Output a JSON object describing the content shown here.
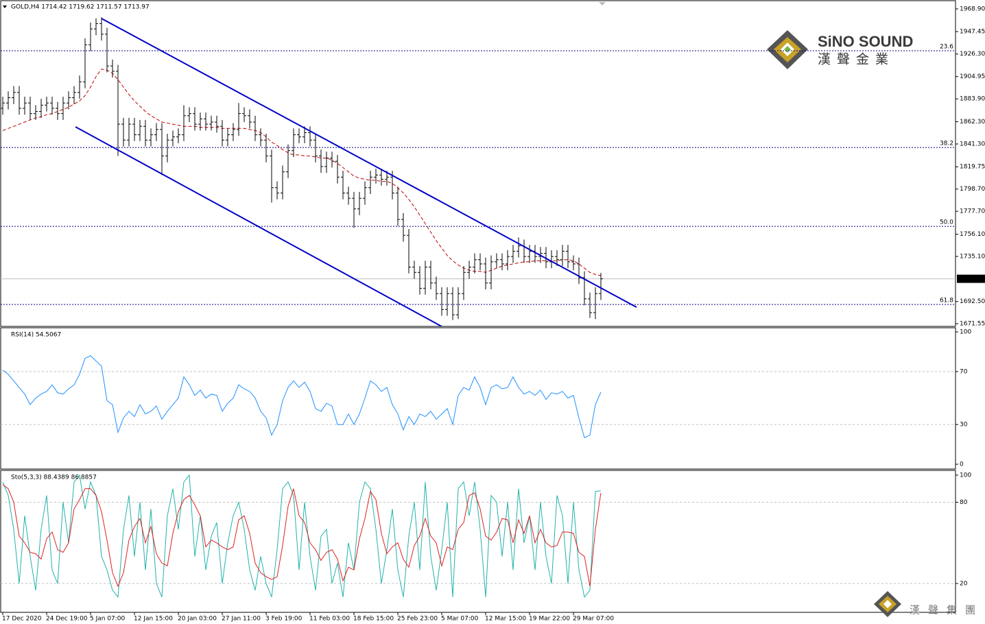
{
  "chart_data": [
    {
      "type": "ohlc",
      "title": "GOLD,H4  1714.42 1719.62 1711.57 1713.97",
      "color": "#000000",
      "categories": [
        "17 Dec 2020",
        null,
        null,
        null,
        null,
        null,
        null,
        null,
        "24 Dec 19:00",
        null,
        null,
        null,
        null,
        null,
        null,
        null,
        "5 Jan 07:00",
        null,
        null,
        null,
        null,
        null,
        null,
        null,
        "12 Jan 15:00",
        null,
        null,
        null,
        null,
        null,
        null,
        null,
        "20 Jan 03:00",
        null,
        null,
        null,
        null,
        null,
        null,
        null,
        "27 Jan 11:00",
        null,
        null,
        null,
        null,
        null,
        null,
        null,
        "3 Feb 19:00",
        null,
        null,
        null,
        null,
        null,
        null,
        null,
        "11 Feb 03:00",
        null,
        null,
        null,
        null,
        null,
        null,
        null,
        "18 Feb 15:00",
        null,
        null,
        null,
        null,
        null,
        null,
        null,
        "25 Feb 23:00",
        null,
        null,
        null,
        null,
        null,
        null,
        null,
        "5 Mar 07:00",
        null,
        null,
        null,
        null,
        null,
        null,
        null,
        "12 Mar 15:00",
        null,
        null,
        null,
        null,
        null,
        null,
        null,
        "19 Mar 22:00",
        null,
        null,
        null,
        null,
        null,
        null,
        null,
        "29 Mar 07:00",
        null,
        null,
        null,
        null,
        null
      ],
      "open": [
        1875,
        1880,
        1885,
        1890,
        1875,
        1880,
        1870,
        1872,
        1878,
        1880,
        1875,
        1870,
        1880,
        1885,
        1890,
        1900,
        1935,
        1950,
        1955,
        1945,
        1915,
        1910,
        1860,
        1845,
        1860,
        1850,
        1858,
        1845,
        1850,
        1855,
        1830,
        1845,
        1848,
        1850,
        1868,
        1870,
        1860,
        1865,
        1860,
        1862,
        1858,
        1845,
        1850,
        1855,
        1870,
        1868,
        1862,
        1850,
        1845,
        1830,
        1800,
        1795,
        1815,
        1835,
        1850,
        1848,
        1852,
        1845,
        1830,
        1820,
        1828,
        1825,
        1810,
        1795,
        1790,
        1780,
        1790,
        1800,
        1810,
        1812,
        1808,
        1810,
        1795,
        1770,
        1755,
        1725,
        1720,
        1705,
        1725,
        1710,
        1700,
        1685,
        1700,
        1680,
        1700,
        1720,
        1725,
        1732,
        1728,
        1710,
        1730,
        1732,
        1728,
        1735,
        1740,
        1745,
        1735,
        1740,
        1735,
        1738,
        1730,
        1735,
        1732,
        1740,
        1730,
        1728,
        1715,
        1695,
        1682,
        1700
      ],
      "high": [
        1886,
        1891,
        1896,
        1896,
        1886,
        1886,
        1878,
        1884,
        1886,
        1886,
        1881,
        1886,
        1891,
        1896,
        1906,
        1941,
        1956,
        1960,
        1961,
        1951,
        1921,
        1916,
        1866,
        1866,
        1866,
        1864,
        1864,
        1856,
        1861,
        1861,
        1851,
        1854,
        1856,
        1878,
        1876,
        1876,
        1871,
        1871,
        1868,
        1868,
        1864,
        1856,
        1861,
        1880,
        1876,
        1874,
        1868,
        1856,
        1851,
        1836,
        1806,
        1821,
        1841,
        1856,
        1856,
        1858,
        1858,
        1851,
        1836,
        1834,
        1834,
        1831,
        1816,
        1801,
        1796,
        1796,
        1806,
        1816,
        1818,
        1818,
        1816,
        1816,
        1801,
        1776,
        1761,
        1731,
        1726,
        1731,
        1731,
        1716,
        1706,
        1706,
        1706,
        1706,
        1726,
        1731,
        1738,
        1738,
        1734,
        1736,
        1738,
        1738,
        1741,
        1746,
        1753,
        1751,
        1746,
        1746,
        1744,
        1744,
        1741,
        1741,
        1746,
        1746,
        1736,
        1734,
        1721,
        1701,
        1706,
        1719.62
      ],
      "low": [
        1869,
        1874,
        1879,
        1869,
        1869,
        1864,
        1864,
        1866,
        1872,
        1869,
        1864,
        1864,
        1874,
        1879,
        1884,
        1894,
        1929,
        1944,
        1939,
        1909,
        1904,
        1830,
        1839,
        1839,
        1844,
        1844,
        1839,
        1839,
        1844,
        1812,
        1824,
        1839,
        1842,
        1844,
        1862,
        1854,
        1854,
        1854,
        1854,
        1852,
        1839,
        1839,
        1844,
        1849,
        1862,
        1856,
        1844,
        1839,
        1824,
        1786,
        1789,
        1789,
        1809,
        1829,
        1842,
        1842,
        1839,
        1824,
        1814,
        1814,
        1819,
        1804,
        1789,
        1784,
        1762,
        1774,
        1784,
        1794,
        1804,
        1802,
        1802,
        1789,
        1764,
        1749,
        1719,
        1714,
        1699,
        1699,
        1704,
        1694,
        1679,
        1679,
        1675,
        1676,
        1694,
        1714,
        1719,
        1722,
        1704,
        1704,
        1724,
        1722,
        1722,
        1729,
        1734,
        1729,
        1729,
        1729,
        1729,
        1724,
        1724,
        1726,
        1726,
        1724,
        1722,
        1709,
        1689,
        1677,
        1676,
        1694
      ],
      "close": [
        1880,
        1885,
        1890,
        1875,
        1880,
        1870,
        1872,
        1878,
        1880,
        1875,
        1870,
        1880,
        1885,
        1890,
        1900,
        1935,
        1950,
        1955,
        1945,
        1915,
        1910,
        1860,
        1845,
        1860,
        1850,
        1858,
        1845,
        1850,
        1855,
        1830,
        1845,
        1848,
        1850,
        1868,
        1870,
        1860,
        1865,
        1860,
        1862,
        1858,
        1845,
        1850,
        1855,
        1870,
        1868,
        1862,
        1850,
        1845,
        1830,
        1800,
        1795,
        1815,
        1835,
        1850,
        1848,
        1852,
        1845,
        1830,
        1820,
        1828,
        1825,
        1810,
        1795,
        1790,
        1780,
        1790,
        1800,
        1810,
        1812,
        1808,
        1810,
        1795,
        1770,
        1755,
        1725,
        1720,
        1705,
        1725,
        1710,
        1700,
        1685,
        1700,
        1680,
        1700,
        1720,
        1725,
        1732,
        1728,
        1710,
        1730,
        1732,
        1728,
        1735,
        1740,
        1745,
        1735,
        1740,
        1735,
        1738,
        1730,
        1735,
        1732,
        1740,
        1730,
        1728,
        1715,
        1695,
        1682,
        1700,
        1713.97
      ],
      "moving_average": {
        "color": "#c00000",
        "values": [
          1854,
          1856,
          1858,
          1860,
          1862,
          1864,
          1866,
          1867,
          1869,
          1870,
          1872,
          1874,
          1876,
          1879,
          1882,
          1887,
          1895,
          1905,
          1912,
          1911,
          1908,
          1902,
          1895,
          1888,
          1882,
          1877,
          1872,
          1868,
          1865,
          1862,
          1861,
          1860,
          1859,
          1858,
          1858,
          1858,
          1857,
          1857,
          1857,
          1857,
          1856,
          1856,
          1856,
          1856,
          1856,
          1855,
          1854,
          1852,
          1848,
          1843,
          1840,
          1836,
          1833,
          1831,
          1831,
          1830,
          1830,
          1829,
          1828,
          1828,
          1826,
          1823,
          1819,
          1815,
          1811,
          1809,
          1808,
          1807,
          1807,
          1806,
          1806,
          1804,
          1800,
          1795,
          1789,
          1782,
          1774,
          1766,
          1758,
          1750,
          1743,
          1736,
          1731,
          1727,
          1724,
          1722,
          1721,
          1721,
          1720,
          1722,
          1724,
          1726,
          1727,
          1728,
          1729,
          1730,
          1730,
          1731,
          1731,
          1731,
          1731,
          1731,
          1732,
          1732,
          1731,
          1728,
          1724,
          1720,
          1718,
          1717
        ]
      },
      "trendlines": [
        {
          "color": "#0000c8",
          "x": [
            18,
            115.5
          ],
          "y": [
            1959.8,
            1687.1
          ]
        },
        {
          "color": "#0000c8",
          "x": [
            13.25,
            80
          ],
          "y": [
            1857.5,
            1668.9
          ]
        }
      ],
      "fib_levels": [
        {
          "value": 1929.4,
          "label": "23.6"
        },
        {
          "value": 1838.0,
          "label": "38.2"
        },
        {
          "value": 1763.5,
          "label": "50.0"
        },
        {
          "value": 1689.7,
          "label": "61.8"
        }
      ],
      "last_price": 1713.97,
      "ylim": [
        1669,
        1977.3
      ],
      "yticks": [
        {
          "value": 1968.9,
          "label": "1968.90"
        },
        {
          "value": 1947.45,
          "label": "1947.45"
        },
        {
          "value": 1926.3,
          "label": "1926.30"
        },
        {
          "value": 1904.95,
          "label": "1904.95"
        },
        {
          "value": 1883.9,
          "label": "1883.90"
        },
        {
          "value": 1862.3,
          "label": "1862.30"
        },
        {
          "value": 1841.3,
          "label": "1841.30"
        },
        {
          "value": 1819.75,
          "label": "1819.75"
        },
        {
          "value": 1798.7,
          "label": "1798.70"
        },
        {
          "value": 1777.7,
          "label": "1777.70"
        },
        {
          "value": 1756.1,
          "label": "1756.10"
        },
        {
          "value": 1735.1,
          "label": "1735.10"
        },
        {
          "value": 1692.5,
          "label": "1692.50"
        },
        {
          "value": 1671.55,
          "label": "1671.55"
        }
      ]
    },
    {
      "type": "line",
      "title": "RSI(14) 54.5067",
      "series": [
        {
          "color": "#1e90ff",
          "values": [
            71,
            68,
            63,
            58,
            53,
            45,
            50,
            53,
            55,
            60,
            54,
            53,
            57,
            60,
            68,
            80,
            82,
            78,
            74,
            48,
            45,
            24,
            35,
            40,
            36,
            45,
            38,
            40,
            44,
            34,
            40,
            45,
            50,
            66,
            60,
            52,
            56,
            50,
            53,
            52,
            40,
            46,
            50,
            60,
            57,
            55,
            50,
            40,
            35,
            22,
            30,
            48,
            58,
            63,
            58,
            62,
            55,
            42,
            40,
            46,
            44,
            30,
            30,
            38,
            30,
            38,
            50,
            63,
            60,
            55,
            58,
            45,
            38,
            26,
            36,
            30,
            38,
            36,
            40,
            34,
            38,
            42,
            30,
            52,
            58,
            56,
            66,
            58,
            45,
            58,
            60,
            57,
            58,
            66,
            58,
            53,
            55,
            52,
            56,
            49,
            54,
            53,
            55,
            50,
            52,
            35,
            20,
            22,
            45,
            54.5067
          ]
        }
      ],
      "levels": [
        30,
        70
      ],
      "ylim": [
        -3.1,
        103.1
      ],
      "yticks": [
        100,
        70,
        30,
        0
      ]
    },
    {
      "type": "line",
      "title": "Sto(5,3,3) 88.4389 86.8857",
      "series": [
        {
          "color": "#20b2aa",
          "values": [
            95,
            85,
            60,
            20,
            70,
            40,
            15,
            60,
            85,
            30,
            20,
            80,
            50,
            95,
            100,
            75,
            95,
            85,
            40,
            30,
            15,
            10,
            60,
            85,
            40,
            80,
            30,
            75,
            20,
            10,
            70,
            90,
            60,
            95,
            100,
            40,
            70,
            30,
            55,
            65,
            20,
            50,
            70,
            80,
            60,
            30,
            15,
            40,
            20,
            10,
            45,
            90,
            95,
            85,
            30,
            80,
            40,
            15,
            55,
            60,
            20,
            35,
            10,
            50,
            30,
            80,
            95,
            90,
            60,
            20,
            45,
            75,
            30,
            10,
            55,
            80,
            30,
            95,
            40,
            15,
            45,
            80,
            10,
            90,
            95,
            70,
            95,
            60,
            10,
            85,
            80,
            40,
            80,
            30,
            90,
            50,
            70,
            30,
            80,
            40,
            20,
            85,
            70,
            20,
            80,
            30,
            10,
            15,
            88,
            88.4389
          ]
        },
        {
          "color": "#e02020",
          "values": [
            93,
            90,
            80,
            55,
            50,
            43,
            42,
            38,
            53,
            58,
            45,
            43,
            50,
            75,
            82,
            90,
            90,
            85,
            73,
            52,
            28,
            18,
            28,
            52,
            62,
            68,
            50,
            62,
            42,
            35,
            33,
            57,
            73,
            82,
            85,
            78,
            70,
            47,
            52,
            50,
            47,
            45,
            47,
            67,
            70,
            57,
            35,
            28,
            25,
            23,
            25,
            48,
            77,
            90,
            70,
            65,
            50,
            45,
            37,
            43,
            45,
            38,
            22,
            32,
            30,
            53,
            68,
            88,
            82,
            57,
            42,
            47,
            50,
            38,
            32,
            48,
            55,
            68,
            55,
            50,
            33,
            47,
            45,
            60,
            65,
            85,
            87,
            75,
            55,
            52,
            58,
            68,
            67,
            50,
            67,
            57,
            70,
            50,
            60,
            50,
            47,
            48,
            58,
            58,
            57,
            43,
            40,
            18,
            60,
            86.8857
          ]
        }
      ],
      "levels": [
        20,
        80
      ],
      "ylim": [
        -1.3,
        103.5
      ],
      "yticks": [
        100,
        80,
        20
      ]
    }
  ],
  "watermark": {
    "brand": "SiNO SOUND",
    "brand_cn": "漢聲金業",
    "footer_cn": "漢聲集團"
  }
}
